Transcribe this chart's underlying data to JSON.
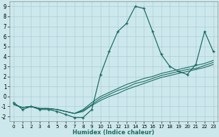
{
  "title": "",
  "xlabel": "Humidex (Indice chaleur)",
  "bg_color": "#cce8ec",
  "line_color": "#1a6b60",
  "grid_color": "#aacdd4",
  "xlim": [
    -0.5,
    23.5
  ],
  "ylim": [
    -2.5,
    9.5
  ],
  "xticks": [
    0,
    1,
    2,
    3,
    4,
    5,
    6,
    7,
    8,
    9,
    10,
    11,
    12,
    13,
    14,
    15,
    16,
    17,
    18,
    19,
    20,
    21,
    22,
    23
  ],
  "yticks": [
    -2,
    -1,
    0,
    1,
    2,
    3,
    4,
    5,
    6,
    7,
    8,
    9
  ],
  "x": [
    0,
    1,
    2,
    3,
    4,
    5,
    6,
    7,
    8,
    9,
    10,
    11,
    12,
    13,
    14,
    15,
    16,
    17,
    18,
    19,
    20,
    21,
    22,
    23
  ],
  "y_main": [
    -0.6,
    -1.3,
    -1.0,
    -1.3,
    -1.3,
    -1.5,
    -1.8,
    -2.1,
    -2.1,
    -1.3,
    2.2,
    4.5,
    6.5,
    7.3,
    9.0,
    8.8,
    6.5,
    4.2,
    3.0,
    2.5,
    2.2,
    3.2,
    6.5,
    4.5
  ],
  "y_line1": [
    -0.8,
    -1.1,
    -1.0,
    -1.2,
    -1.2,
    -1.3,
    -1.5,
    -1.7,
    -1.5,
    -0.9,
    -0.4,
    0.0,
    0.3,
    0.7,
    1.0,
    1.3,
    1.6,
    1.9,
    2.1,
    2.3,
    2.5,
    2.7,
    2.9,
    3.2
  ],
  "y_line2": [
    -0.8,
    -1.1,
    -1.0,
    -1.2,
    -1.2,
    -1.3,
    -1.5,
    -1.7,
    -1.4,
    -0.8,
    -0.2,
    0.2,
    0.6,
    0.9,
    1.3,
    1.5,
    1.8,
    2.1,
    2.3,
    2.5,
    2.7,
    2.8,
    3.1,
    3.4
  ],
  "y_line3": [
    -0.8,
    -1.1,
    -1.0,
    -1.2,
    -1.2,
    -1.3,
    -1.5,
    -1.7,
    -1.3,
    -0.6,
    0.0,
    0.4,
    0.8,
    1.2,
    1.5,
    1.8,
    2.0,
    2.3,
    2.5,
    2.7,
    2.9,
    3.1,
    3.3,
    3.6
  ]
}
